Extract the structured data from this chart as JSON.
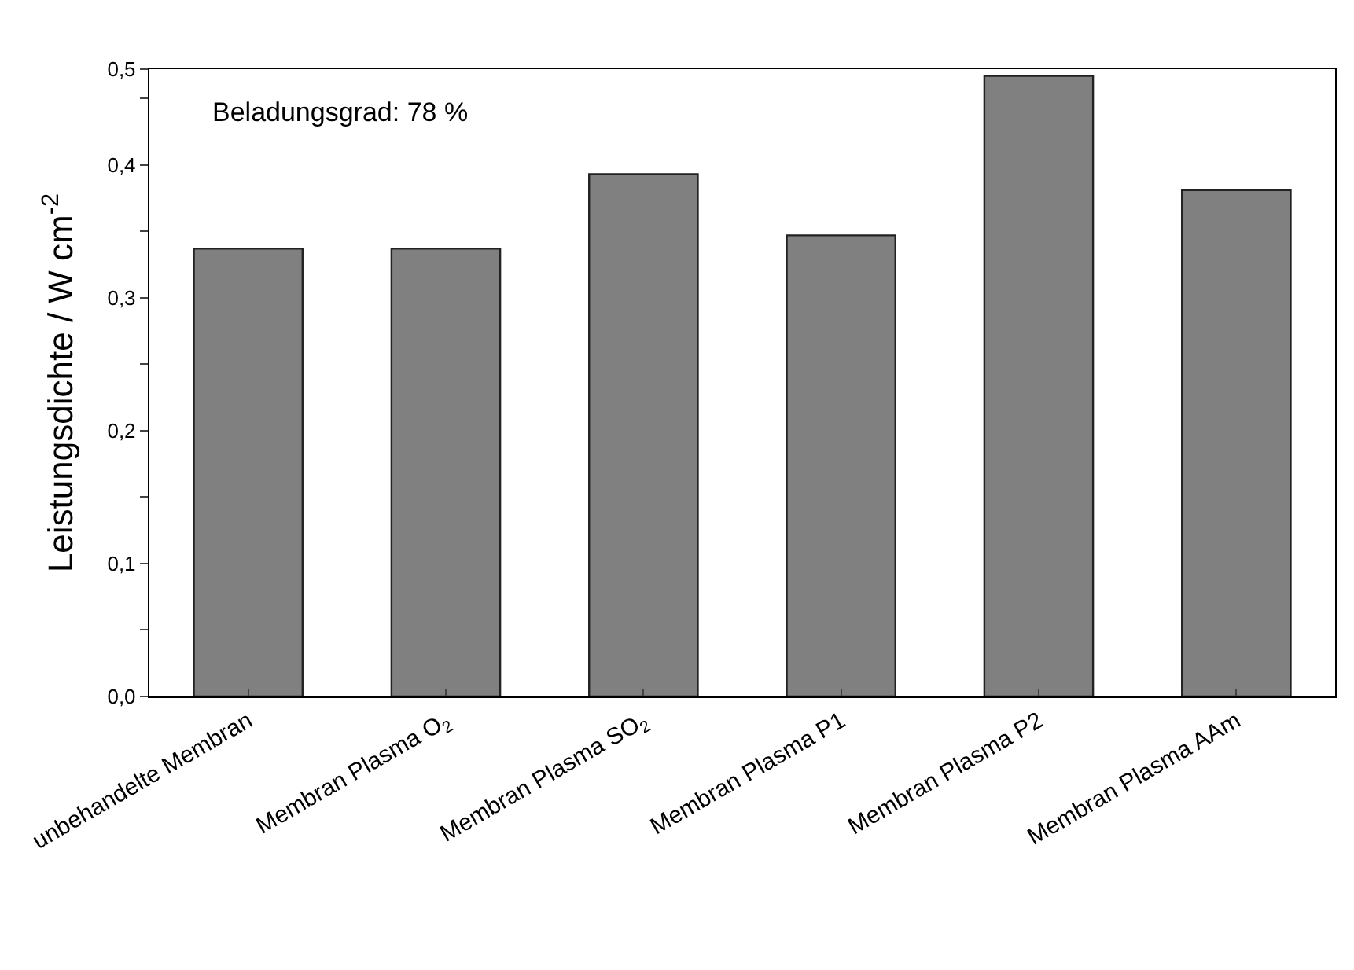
{
  "chart_data": {
    "type": "bar",
    "ylabel": "Leistungsdichte / W cm$^{-2}$",
    "categories": [
      "unbehandelte Membran",
      "Membran Plasma O$_{2}$",
      "Membran Plasma SO$_{2}$",
      "Membran Plasma P1",
      "Membran Plasma P2",
      "Membran Plasma AAm"
    ],
    "values": [
      0.337,
      0.337,
      0.393,
      0.347,
      0.467,
      0.381
    ],
    "color": "#808080",
    "ylim": [
      0,
      0.472
    ],
    "yticks": [
      {
        "value": 0,
        "label": "0,0"
      },
      {
        "value": 0.05,
        "label": null
      },
      {
        "value": 0.1,
        "label": "0,1"
      },
      {
        "value": 0.15,
        "label": null
      },
      {
        "value": 0.2,
        "label": "0,2"
      },
      {
        "value": 0.25,
        "label": null
      },
      {
        "value": 0.3,
        "label": "0,3"
      },
      {
        "value": 0.35,
        "label": null
      },
      {
        "value": 0.4,
        "label": "0,4"
      },
      {
        "value": 0.45,
        "label": null
      },
      {
        "value": 0.472,
        "label": "0,5"
      }
    ],
    "annotations": [
      "Beladungsgrad: 78 %"
    ],
    "legend": false
  }
}
